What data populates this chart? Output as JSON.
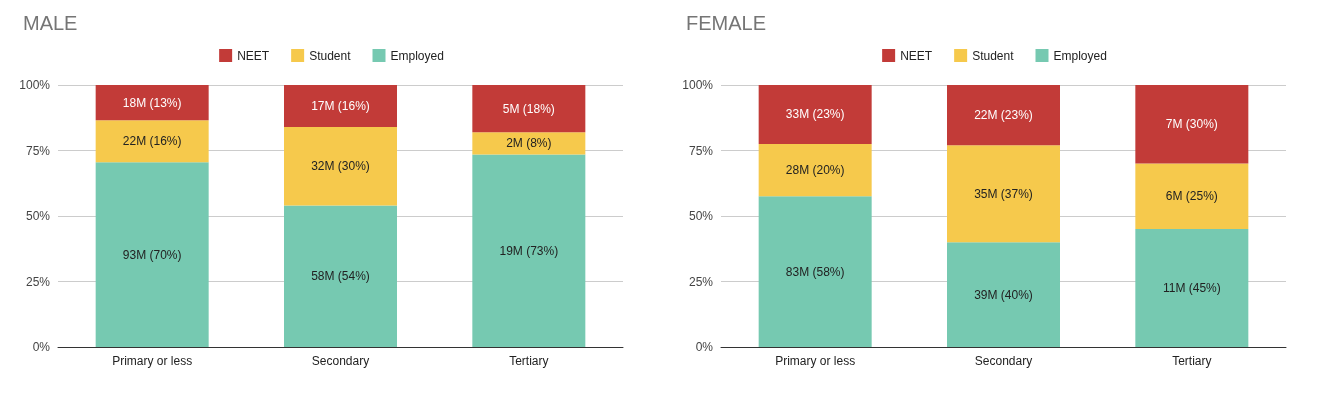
{
  "chart_data": [
    {
      "type": "bar",
      "title": "MALE",
      "stacked": true,
      "categories": [
        "Primary or less",
        "Secondary",
        "Tertiary"
      ],
      "ylim": [
        0,
        100
      ],
      "yticks": [
        {
          "value": 0,
          "label": "0%"
        },
        {
          "value": 25,
          "label": "25%"
        },
        {
          "value": 50,
          "label": "50%"
        },
        {
          "value": 75,
          "label": "75%"
        },
        {
          "value": 100,
          "label": "100%"
        }
      ],
      "grid": "y",
      "legend": "top",
      "series": [
        {
          "name": "Employed",
          "color": "#76c9b1",
          "values": [
            70.5,
            54,
            73.5
          ],
          "value_labels": [
            "93M (70%)",
            "58M (54%)",
            "19M (73%)"
          ]
        },
        {
          "name": "Student",
          "color": "#f6c94c",
          "values": [
            16,
            30,
            8.5
          ],
          "value_labels": [
            "22M (16%)",
            "32M (30%)",
            "2M (8%)"
          ]
        },
        {
          "name": "NEET",
          "color": "#c23b38",
          "values": [
            13.5,
            16,
            18
          ],
          "value_labels": [
            "18M (13%)",
            "17M (16%)",
            "5M (18%)"
          ]
        }
      ]
    },
    {
      "type": "bar",
      "title": "FEMALE",
      "stacked": true,
      "categories": [
        "Primary or less",
        "Secondary",
        "Tertiary"
      ],
      "ylim": [
        0,
        100
      ],
      "yticks": [
        {
          "value": 0,
          "label": "0%"
        },
        {
          "value": 25,
          "label": "25%"
        },
        {
          "value": 50,
          "label": "50%"
        },
        {
          "value": 75,
          "label": "75%"
        },
        {
          "value": 100,
          "label": "100%"
        }
      ],
      "grid": "y",
      "legend": "top",
      "series": [
        {
          "name": "Employed",
          "color": "#76c9b1",
          "values": [
            57.5,
            40,
            45
          ],
          "value_labels": [
            "83M (58%)",
            "39M (40%)",
            "11M (45%)"
          ]
        },
        {
          "name": "Student",
          "color": "#f6c94c",
          "values": [
            20,
            37,
            25
          ],
          "value_labels": [
            "28M (20%)",
            "35M (37%)",
            "6M (25%)"
          ]
        },
        {
          "name": "NEET",
          "color": "#c23b38",
          "values": [
            22.5,
            23,
            30
          ],
          "value_labels": [
            "33M (23%)",
            "22M (23%)",
            "7M (30%)"
          ]
        }
      ]
    }
  ]
}
